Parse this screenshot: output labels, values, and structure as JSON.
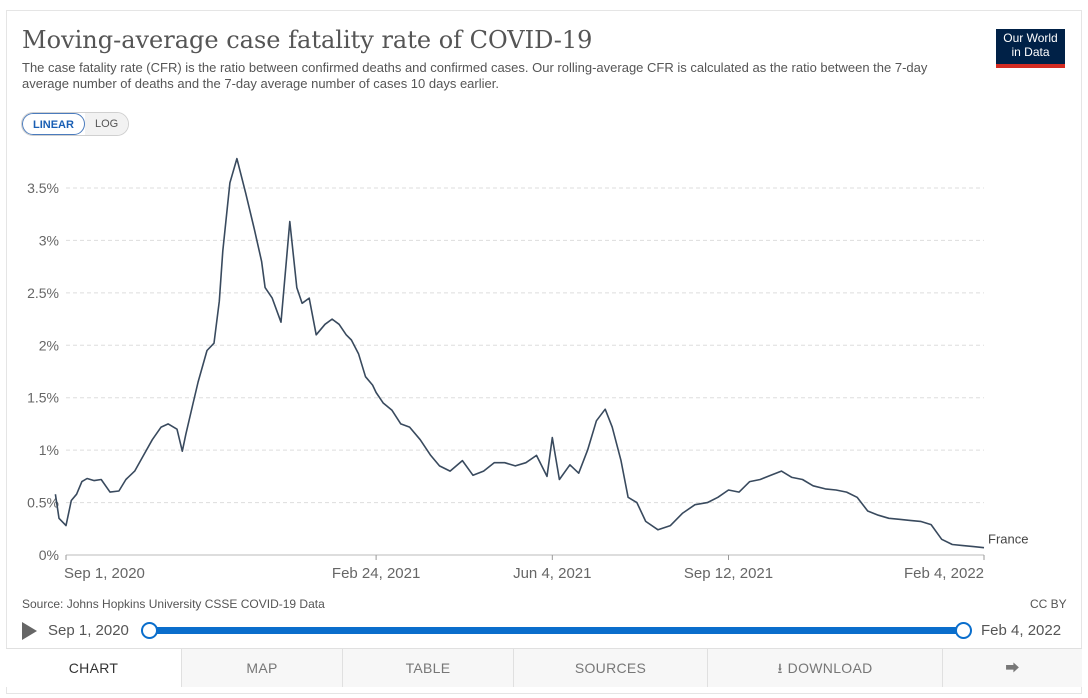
{
  "title": "Moving-average case fatality rate of COVID-19",
  "subtitle": "The case fatality rate (CFR) is the ratio between confirmed deaths and confirmed cases. Our rolling-average CFR is calculated as the ratio between the 7-day average number of deaths and the 7-day average number of cases 10 days earlier.",
  "logo": {
    "line1": "Our World",
    "line2": "in Data"
  },
  "scale_toggle": {
    "linear": "LINEAR",
    "log": "LOG",
    "selected": "linear"
  },
  "source": "Source: Johns Hopkins University CSSE COVID-19 Data",
  "license": "CC BY",
  "timeline": {
    "start": "Sep 1, 2020",
    "end": "Feb 4, 2022"
  },
  "tabs": {
    "chart": "CHART",
    "map": "MAP",
    "table": "TABLE",
    "sources": "SOURCES",
    "download": "DOWNLOAD",
    "share_icon": "share-icon"
  },
  "colors": {
    "line": "#394a5e",
    "grid": "#dddddd",
    "accent": "#0a6ecc",
    "logo_bg": "#002147",
    "logo_bar": "#d42b21"
  },
  "chart_data": {
    "type": "line",
    "title": "Moving-average case fatality rate of COVID-19",
    "y_unit": "%",
    "ylim": [
      0,
      3.5
    ],
    "yticks": [
      0,
      0.5,
      1,
      1.5,
      2,
      2.5,
      3,
      3.5
    ],
    "ytick_labels": [
      "0%",
      "0.5%",
      "1%",
      "1.5%",
      "2%",
      "2.5%",
      "3%",
      "3.5%"
    ],
    "xlim": [
      "2020-09-01",
      "2022-02-04"
    ],
    "xticks": [
      "2020-09-01",
      "2021-02-24",
      "2021-06-04",
      "2021-09-12",
      "2022-02-04"
    ],
    "xtick_labels": [
      "Sep 1, 2020",
      "Feb 24, 2021",
      "Jun 4, 2021",
      "Sep 12, 2021",
      "Feb 4, 2022"
    ],
    "grid": true,
    "series": [
      {
        "name": "France",
        "x": [
          "2020-08-26",
          "2020-08-28",
          "2020-09-01",
          "2020-09-04",
          "2020-09-07",
          "2020-09-10",
          "2020-09-13",
          "2020-09-17",
          "2020-09-21",
          "2020-09-26",
          "2020-10-01",
          "2020-10-05",
          "2020-10-10",
          "2020-10-15",
          "2020-10-20",
          "2020-10-25",
          "2020-10-29",
          "2020-11-03",
          "2020-11-06",
          "2020-11-08",
          "2020-11-12",
          "2020-11-15",
          "2020-11-20",
          "2020-11-24",
          "2020-11-27",
          "2020-11-29",
          "2020-12-03",
          "2020-12-07",
          "2020-12-12",
          "2020-12-17",
          "2020-12-21",
          "2020-12-23",
          "2020-12-27",
          "2021-01-01",
          "2021-01-06",
          "2021-01-10",
          "2021-01-13",
          "2021-01-17",
          "2021-01-21",
          "2021-01-26",
          "2021-01-30",
          "2021-02-03",
          "2021-02-07",
          "2021-02-10",
          "2021-02-14",
          "2021-02-18",
          "2021-02-22",
          "2021-02-24",
          "2021-02-28",
          "2021-03-05",
          "2021-03-10",
          "2021-03-15",
          "2021-03-21",
          "2021-03-27",
          "2021-04-01",
          "2021-04-07",
          "2021-04-14",
          "2021-04-20",
          "2021-04-26",
          "2021-05-02",
          "2021-05-08",
          "2021-05-14",
          "2021-05-20",
          "2021-05-26",
          "2021-06-01",
          "2021-06-04",
          "2021-06-08",
          "2021-06-14",
          "2021-06-19",
          "2021-06-24",
          "2021-06-29",
          "2021-07-04",
          "2021-07-08",
          "2021-07-13",
          "2021-07-17",
          "2021-07-22",
          "2021-07-27",
          "2021-08-03",
          "2021-08-10",
          "2021-08-17",
          "2021-08-24",
          "2021-08-31",
          "2021-09-06",
          "2021-09-12",
          "2021-09-18",
          "2021-09-24",
          "2021-09-30",
          "2021-10-06",
          "2021-10-12",
          "2021-10-18",
          "2021-10-24",
          "2021-10-30",
          "2021-11-06",
          "2021-11-12",
          "2021-11-18",
          "2021-11-24",
          "2021-11-30",
          "2021-12-06",
          "2021-12-12",
          "2021-12-18",
          "2021-12-24",
          "2021-12-30",
          "2022-01-05",
          "2022-01-11",
          "2022-01-17",
          "2022-01-23",
          "2022-01-29",
          "2022-02-04"
        ],
        "y": [
          0.58,
          0.35,
          0.28,
          0.52,
          0.58,
          0.7,
          0.73,
          0.71,
          0.72,
          0.6,
          0.61,
          0.72,
          0.8,
          0.95,
          1.1,
          1.22,
          1.25,
          1.2,
          0.99,
          1.15,
          1.44,
          1.65,
          1.95,
          2.02,
          2.42,
          2.9,
          3.55,
          3.78,
          3.45,
          3.1,
          2.8,
          2.55,
          2.45,
          2.22,
          3.18,
          2.55,
          2.4,
          2.45,
          2.1,
          2.2,
          2.25,
          2.2,
          2.1,
          2.05,
          1.92,
          1.7,
          1.62,
          1.55,
          1.45,
          1.38,
          1.25,
          1.22,
          1.1,
          0.95,
          0.85,
          0.8,
          0.9,
          0.76,
          0.8,
          0.88,
          0.88,
          0.85,
          0.88,
          0.95,
          0.75,
          1.12,
          0.72,
          0.86,
          0.78,
          1.0,
          1.28,
          1.39,
          1.22,
          0.9,
          0.55,
          0.5,
          0.32,
          0.24,
          0.28,
          0.4,
          0.48,
          0.5,
          0.55,
          0.62,
          0.6,
          0.7,
          0.72,
          0.76,
          0.8,
          0.74,
          0.72,
          0.66,
          0.63,
          0.62,
          0.6,
          0.55,
          0.42,
          0.38,
          0.35,
          0.34,
          0.33,
          0.32,
          0.29,
          0.15,
          0.1,
          0.09,
          0.08,
          0.07
        ]
      }
    ]
  }
}
